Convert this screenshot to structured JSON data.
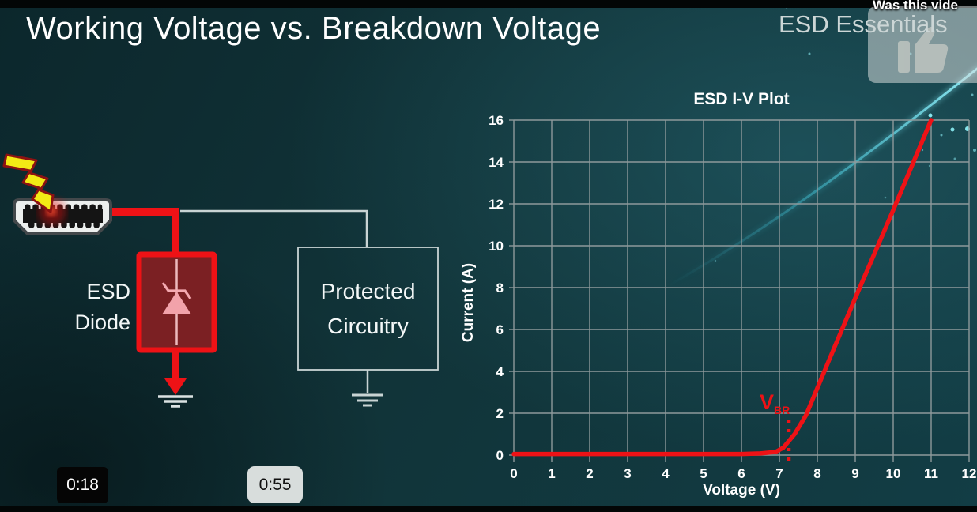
{
  "slide": {
    "title": "Working Voltage vs. Breakdown Voltage",
    "brand": "ESD Essentials"
  },
  "video_overlay": {
    "prompt": "Was this vide",
    "like_icon": "thumbs-up-icon",
    "time_current": "0:18",
    "time_marker": "0:55"
  },
  "circuit": {
    "esd_diode_label": [
      "ESD",
      "Diode"
    ],
    "protected_label": [
      "Protected",
      "Circuitry"
    ],
    "icons": [
      "lightning-bolt",
      "hdmi-connector",
      "zener-diode",
      "ground-symbol"
    ]
  },
  "colors": {
    "accent_red": "#ee1216",
    "background_teal": "#113439",
    "grid_gray": "#8e999b",
    "swoosh_cyan": "#59dcea",
    "diode_fill": "#7b2023"
  },
  "chart_data": {
    "type": "line",
    "title": "ESD I-V Plot",
    "xlabel": "Voltage (V)",
    "ylabel": "Current (A)",
    "xlim": [
      0,
      12
    ],
    "ylim": [
      0,
      16
    ],
    "x_ticks": [
      0,
      1,
      2,
      3,
      4,
      5,
      6,
      7,
      8,
      9,
      10,
      11,
      12
    ],
    "y_ticks": [
      0,
      2,
      4,
      6,
      8,
      10,
      12,
      14,
      16
    ],
    "grid": true,
    "legend": false,
    "series": [
      {
        "color": "#ee1216",
        "points": [
          [
            0,
            0.05
          ],
          [
            3,
            0.05
          ],
          [
            6,
            0.05
          ],
          [
            6.5,
            0.08
          ],
          [
            6.9,
            0.15
          ],
          [
            7.1,
            0.35
          ],
          [
            7.4,
            1.0
          ],
          [
            7.7,
            1.9
          ],
          [
            8.0,
            3.2
          ],
          [
            8.3,
            4.5
          ],
          [
            9,
            7.5
          ],
          [
            10,
            11.7
          ],
          [
            11,
            16
          ]
        ]
      }
    ],
    "annotation": {
      "label": "V",
      "sub": "BR",
      "x": 7.25,
      "y_top": 1.7,
      "color": "#ee1216",
      "style": "dotted-vertical"
    }
  }
}
